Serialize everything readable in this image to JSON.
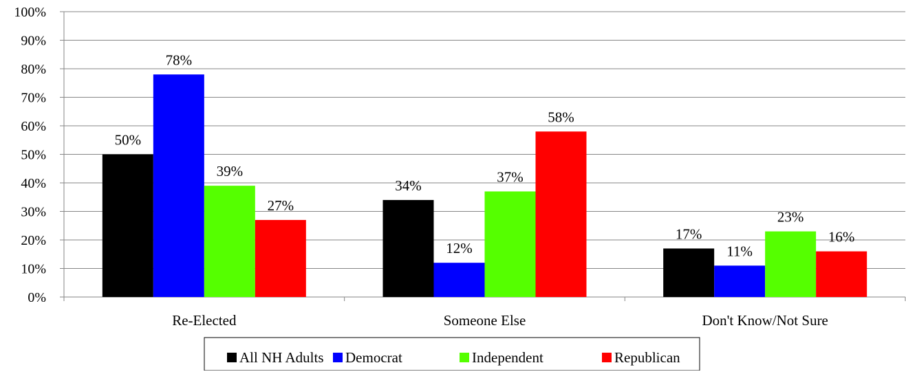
{
  "chart_data": {
    "type": "bar",
    "categories": [
      "Re-Elected",
      "Someone Else",
      "Don't Know/Not Sure"
    ],
    "series": [
      {
        "name": "All NH Adults",
        "color": "#000000",
        "values": [
          50,
          34,
          17
        ]
      },
      {
        "name": "Democrat",
        "color": "#0000ff",
        "values": [
          78,
          12,
          11
        ]
      },
      {
        "name": "Independent",
        "color": "#55ff00",
        "values": [
          39,
          37,
          23
        ]
      },
      {
        "name": "Republican",
        "color": "#ff0000",
        "values": [
          27,
          58,
          16
        ]
      }
    ],
    "data_labels": [
      [
        "50%",
        "34%",
        "17%"
      ],
      [
        "78%",
        "12%",
        "11%"
      ],
      [
        "39%",
        "37%",
        "23%"
      ],
      [
        "27%",
        "58%",
        "16%"
      ]
    ],
    "y_ticks": [
      "0%",
      "10%",
      "20%",
      "30%",
      "40%",
      "50%",
      "60%",
      "70%",
      "80%",
      "90%",
      "100%"
    ],
    "ylim": [
      0,
      100
    ],
    "grid": true,
    "legend_position": "bottom"
  }
}
